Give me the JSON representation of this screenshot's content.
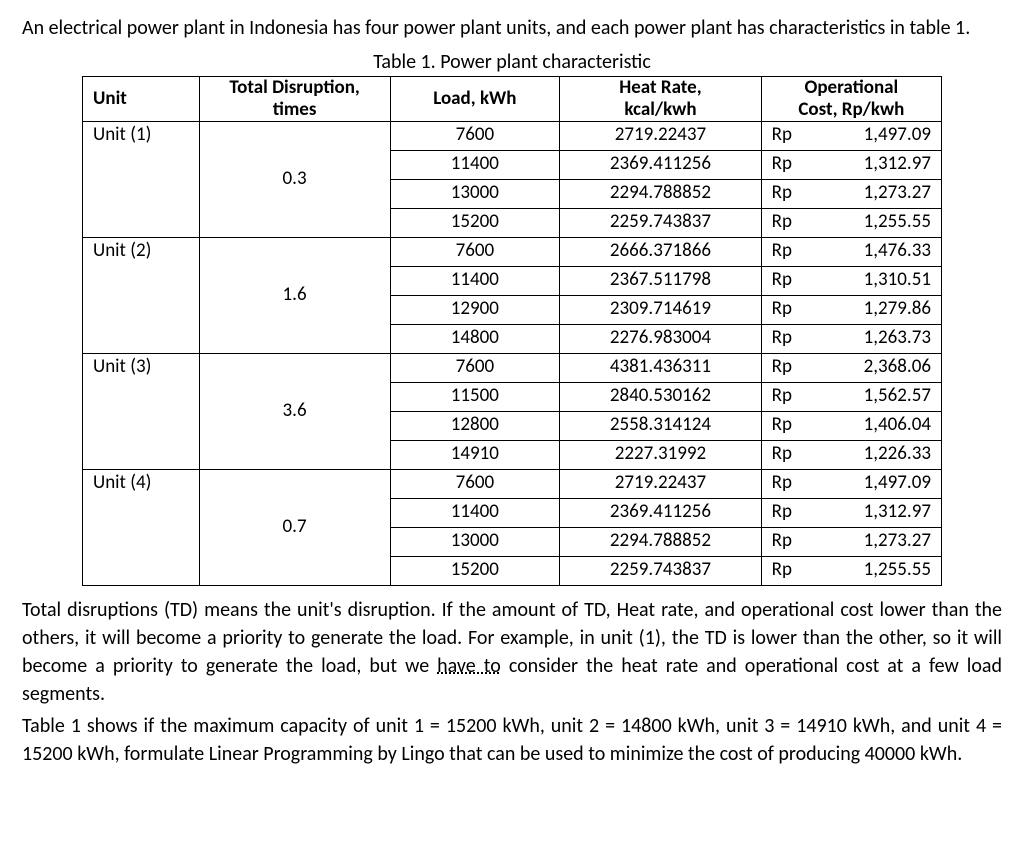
{
  "intro": "An electrical power plant in Indonesia has four power plant units, and each power plant has characteristics in table 1.",
  "table_title": "Table 1. Power plant characteristic",
  "headers": {
    "unit": "Unit",
    "td_line1": "Total Disruption,",
    "td_line2": "times",
    "load": "Load, kWh",
    "heat_line1": "Heat Rate,",
    "heat_line2": "kcal/kwh",
    "cost_line1": "Operational",
    "cost_line2": "Cost, Rp/kwh"
  },
  "currency": "Rp",
  "units": [
    {
      "name": "Unit (1)",
      "td": "0.3",
      "rows": [
        {
          "load": "7600",
          "heat": "2719.22437",
          "cost": "1,497.09"
        },
        {
          "load": "11400",
          "heat": "2369.411256",
          "cost": "1,312.97"
        },
        {
          "load": "13000",
          "heat": "2294.788852",
          "cost": "1,273.27"
        },
        {
          "load": "15200",
          "heat": "2259.743837",
          "cost": "1,255.55"
        }
      ]
    },
    {
      "name": "Unit (2)",
      "td": "1.6",
      "rows": [
        {
          "load": "7600",
          "heat": "2666.371866",
          "cost": "1,476.33"
        },
        {
          "load": "11400",
          "heat": "2367.511798",
          "cost": "1,310.51"
        },
        {
          "load": "12900",
          "heat": "2309.714619",
          "cost": "1,279.86"
        },
        {
          "load": "14800",
          "heat": "2276.983004",
          "cost": "1,263.73"
        }
      ]
    },
    {
      "name": "Unit (3)",
      "td": "3.6",
      "rows": [
        {
          "load": "7600",
          "heat": "4381.436311",
          "cost": "2,368.06"
        },
        {
          "load": "11500",
          "heat": "2840.530162",
          "cost": "1,562.57"
        },
        {
          "load": "12800",
          "heat": "2558.314124",
          "cost": "1,406.04"
        },
        {
          "load": "14910",
          "heat": "2227.31992",
          "cost": "1,226.33"
        }
      ]
    },
    {
      "name": "Unit (4)",
      "td": "0.7",
      "rows": [
        {
          "load": "7600",
          "heat": "2719.22437",
          "cost": "1,497.09"
        },
        {
          "load": "11400",
          "heat": "2369.411256",
          "cost": "1,312.97"
        },
        {
          "load": "13000",
          "heat": "2294.788852",
          "cost": "1,273.27"
        },
        {
          "load": "15200",
          "heat": "2259.743837",
          "cost": "1,255.55"
        }
      ]
    }
  ],
  "outro": {
    "p1_a": "Total disruptions (TD) means the unit's disruption. If the amount of TD, Heat rate, and operational cost lower than the others, it will become a priority to generate the load. For example, in unit (1), the TD is lower than the other, so it will become a priority to generate the load, but we ",
    "p1_dotted": "have to",
    "p1_b": " consider the heat rate and operational cost at a few load segments.",
    "p2": "Table 1 shows if the maximum capacity of unit 1 = 15200 kWh, unit 2 = 14800 kWh, unit 3 = 14910 kWh, and unit 4 = 15200 kWh, formulate Linear Programming by Lingo that can be used to minimize the cost of producing 40000 kWh."
  }
}
